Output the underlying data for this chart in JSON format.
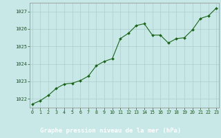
{
  "x": [
    0,
    1,
    2,
    3,
    4,
    5,
    6,
    7,
    8,
    9,
    10,
    11,
    12,
    13,
    14,
    15,
    16,
    17,
    18,
    19,
    20,
    21,
    22,
    23
  ],
  "y": [
    1021.7,
    1021.9,
    1022.2,
    1022.6,
    1022.85,
    1022.9,
    1023.05,
    1023.3,
    1023.9,
    1024.15,
    1024.3,
    1025.45,
    1025.75,
    1026.2,
    1026.3,
    1025.65,
    1025.65,
    1025.2,
    1025.45,
    1025.5,
    1025.95,
    1026.6,
    1026.75,
    1027.2
  ],
  "line_color": "#1a6618",
  "marker_color": "#1a6618",
  "bg_color": "#c8e8e8",
  "grid_color": "#b0cccc",
  "xlabel": "Graphe pression niveau de la mer (hPa)",
  "xlabel_color": "#1a5516",
  "ylim": [
    1021.5,
    1027.5
  ],
  "yticks": [
    1022,
    1023,
    1024,
    1025,
    1026,
    1027
  ],
  "xticks": [
    0,
    1,
    2,
    3,
    4,
    5,
    6,
    7,
    8,
    9,
    10,
    11,
    12,
    13,
    14,
    15,
    16,
    17,
    18,
    19,
    20,
    21,
    22,
    23
  ],
  "tick_color": "#1a5516",
  "spine_color": "#999999",
  "figsize": [
    3.2,
    2.0
  ],
  "dpi": 100,
  "bottom_bar_color": "#1a5516",
  "bottom_bar_text_color": "#ffffff"
}
